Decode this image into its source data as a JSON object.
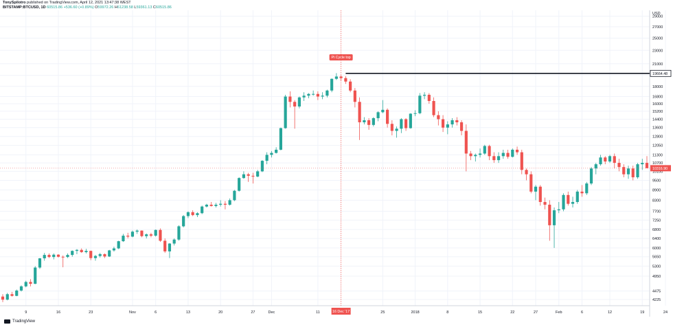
{
  "header": {
    "publisher": "TonySpilotro",
    "published_text": "published on TradingView.com, April 12, 2021 13:47:38 WEST",
    "symbol": "BITSTAMP:BTCUSD, 1D",
    "last": "60515.86",
    "change": "+536.60 (+0.89%)",
    "o_label": "O",
    "o_value": "59972.26",
    "h_label": "H",
    "h_value": "61238.58",
    "l_label": "L",
    "l_value": "59361.13",
    "c_label": "C",
    "c_value": "60515.86"
  },
  "footer": {
    "brand": "TradingView"
  },
  "colors": {
    "up": "#26a69a",
    "down": "#ef5350",
    "cycle_line": "#ef5350",
    "resistance": "#131722"
  },
  "chart_data": {
    "type": "candlestick",
    "currency_label": "USD",
    "y_ticks": [
      4225,
      4475,
      4950,
      5300,
      5650,
      6000,
      6400,
      6800,
      7250,
      7700,
      8300,
      8900,
      9500,
      10100,
      10700,
      11300,
      12050,
      12800,
      13600,
      14400,
      15200,
      16000,
      16800,
      18000,
      19400,
      21000,
      23000,
      25000,
      27000,
      29000
    ],
    "ylim": [
      4050,
      30200
    ],
    "x_ticks": [
      {
        "label": "9",
        "index": 5
      },
      {
        "label": "16",
        "index": 12
      },
      {
        "label": "23",
        "index": 19
      },
      {
        "label": "Nov",
        "index": 28
      },
      {
        "label": "6",
        "index": 33
      },
      {
        "label": "13",
        "index": 40
      },
      {
        "label": "20",
        "index": 47
      },
      {
        "label": "27",
        "index": 54
      },
      {
        "label": "Dec",
        "index": 58
      },
      {
        "label": "11",
        "index": 68
      },
      {
        "label": "25",
        "index": 82
      },
      {
        "label": "2018",
        "index": 89
      },
      {
        "label": "8",
        "index": 96
      },
      {
        "label": "15",
        "index": 103
      },
      {
        "label": "22",
        "index": 110
      },
      {
        "label": "27",
        "index": 115
      },
      {
        "label": "Feb",
        "index": 120
      },
      {
        "label": "6",
        "index": 125
      },
      {
        "label": "12",
        "index": 131
      },
      {
        "label": "19",
        "index": 138
      },
      {
        "label": "24",
        "index": 143
      }
    ],
    "cycle_top": {
      "label": "Pi Cycle top",
      "date_label": "16 Dec '17",
      "index": 73
    },
    "resistance": {
      "value": 19664.48,
      "label": "19664.48",
      "from_index": 74
    },
    "last_price": {
      "value": 10316.9,
      "label": "10316.90"
    },
    "candles": [
      [
        4310,
        4380,
        4150,
        4220
      ],
      [
        4220,
        4420,
        4200,
        4380
      ],
      [
        4380,
        4450,
        4310,
        4330
      ],
      [
        4330,
        4520,
        4320,
        4490
      ],
      [
        4490,
        4650,
        4460,
        4620
      ],
      [
        4620,
        4800,
        4590,
        4760
      ],
      [
        4760,
        4850,
        4620,
        4700
      ],
      [
        4700,
        5300,
        4690,
        5250
      ],
      [
        5250,
        5600,
        5200,
        5590
      ],
      [
        5590,
        5800,
        5500,
        5720
      ],
      [
        5720,
        5780,
        5600,
        5640
      ],
      [
        5640,
        5780,
        5550,
        5730
      ],
      [
        5730,
        5750,
        5620,
        5650
      ],
      [
        5650,
        5700,
        5260,
        5640
      ],
      [
        5640,
        5780,
        5600,
        5720
      ],
      [
        5720,
        5900,
        5650,
        5880
      ],
      [
        5880,
        5950,
        5750,
        5920
      ],
      [
        5920,
        5980,
        5800,
        5830
      ],
      [
        5830,
        5960,
        5780,
        5880
      ],
      [
        5880,
        5890,
        5520,
        5600
      ],
      [
        5600,
        5720,
        5500,
        5680
      ],
      [
        5680,
        5800,
        5620,
        5750
      ],
      [
        5750,
        5780,
        5600,
        5660
      ],
      [
        5660,
        5920,
        5640,
        5900
      ],
      [
        5900,
        6050,
        5850,
        5980
      ],
      [
        5980,
        6300,
        5950,
        6280
      ],
      [
        6280,
        6600,
        6250,
        6520
      ],
      [
        6520,
        6650,
        6400,
        6480
      ],
      [
        6480,
        6750,
        6450,
        6700
      ],
      [
        6700,
        6800,
        6600,
        6750
      ],
      [
        6750,
        6760,
        6450,
        6500
      ],
      [
        6500,
        6620,
        6400,
        6580
      ],
      [
        6580,
        6650,
        6450,
        6520
      ],
      [
        6520,
        6800,
        6480,
        6780
      ],
      [
        6780,
        6850,
        6250,
        6300
      ],
      [
        6300,
        6400,
        5800,
        5860
      ],
      [
        5860,
        6200,
        5600,
        6180
      ],
      [
        6180,
        6400,
        6100,
        6350
      ],
      [
        6350,
        7000,
        6300,
        6950
      ],
      [
        6950,
        7500,
        6900,
        7450
      ],
      [
        7450,
        7700,
        7350,
        7650
      ],
      [
        7650,
        7750,
        7450,
        7500
      ],
      [
        7500,
        7650,
        7400,
        7600
      ],
      [
        7600,
        8000,
        7550,
        7950
      ],
      [
        7950,
        8100,
        7900,
        8050
      ],
      [
        8050,
        8200,
        7950,
        7980
      ],
      [
        7980,
        8150,
        7900,
        8050
      ],
      [
        8050,
        8300,
        7950,
        8100
      ],
      [
        8100,
        8250,
        7800,
        8050
      ],
      [
        8050,
        8400,
        8000,
        8300
      ],
      [
        8300,
        8900,
        8250,
        8850
      ],
      [
        8850,
        9700,
        8800,
        9650
      ],
      [
        9650,
        10100,
        9600,
        9900
      ],
      [
        9900,
        10000,
        9400,
        9800
      ],
      [
        9800,
        10000,
        9300,
        9750
      ],
      [
        9750,
        10200,
        9700,
        10100
      ],
      [
        10100,
        10900,
        10050,
        10850
      ],
      [
        10850,
        11500,
        10600,
        11300
      ],
      [
        11300,
        11600,
        11100,
        11450
      ],
      [
        11450,
        11900,
        11400,
        11700
      ],
      [
        11700,
        13600,
        11650,
        13550
      ],
      [
        13550,
        17000,
        13500,
        16800
      ],
      [
        16800,
        17400,
        15600,
        16200
      ],
      [
        16200,
        16400,
        13500,
        15700
      ],
      [
        15700,
        16800,
        15500,
        16700
      ],
      [
        16700,
        17300,
        16300,
        16900
      ],
      [
        16900,
        17200,
        16600,
        17100
      ],
      [
        17100,
        17500,
        16900,
        17100
      ],
      [
        17100,
        17400,
        16400,
        16800
      ],
      [
        16800,
        17300,
        16500,
        16900
      ],
      [
        16900,
        17600,
        16700,
        17500
      ],
      [
        17500,
        19000,
        17300,
        18950
      ],
      [
        18950,
        19700,
        18800,
        19250
      ],
      [
        19250,
        19400,
        18700,
        19040
      ],
      [
        19040,
        19300,
        18300,
        18600
      ],
      [
        18600,
        18900,
        17300,
        17500
      ],
      [
        17500,
        17800,
        15600,
        16200
      ],
      [
        16200,
        16700,
        12500,
        14100
      ],
      [
        14100,
        14600,
        13900,
        14300
      ],
      [
        14300,
        14500,
        13400,
        13850
      ],
      [
        13850,
        14600,
        13700,
        14500
      ],
      [
        14500,
        15200,
        14200,
        15100
      ],
      [
        15100,
        16400,
        15000,
        15350
      ],
      [
        15350,
        15500,
        13600,
        13950
      ],
      [
        13950,
        14300,
        12900,
        13300
      ],
      [
        13300,
        13700,
        12700,
        13500
      ],
      [
        13500,
        14500,
        13100,
        14400
      ],
      [
        14400,
        14500,
        13300,
        13550
      ],
      [
        13550,
        15000,
        13500,
        14950
      ],
      [
        14950,
        15300,
        14700,
        15000
      ],
      [
        15000,
        17200,
        14900,
        16900
      ],
      [
        16900,
        17300,
        16500,
        17000
      ],
      [
        17000,
        17200,
        16000,
        16300
      ],
      [
        16300,
        16700,
        14600,
        14800
      ],
      [
        14800,
        15200,
        13800,
        14400
      ],
      [
        14400,
        14800,
        13200,
        13600
      ],
      [
        13600,
        14200,
        13000,
        13900
      ],
      [
        13900,
        14500,
        13600,
        14300
      ],
      [
        14300,
        14600,
        13800,
        14100
      ],
      [
        14100,
        14300,
        12900,
        13300
      ],
      [
        13300,
        13900,
        10100,
        11400
      ],
      [
        11400,
        11600,
        10900,
        11200
      ],
      [
        11200,
        11400,
        10800,
        11300
      ],
      [
        11300,
        11800,
        11100,
        11400
      ],
      [
        11400,
        12100,
        11300,
        12000
      ],
      [
        12000,
        12100,
        10900,
        11200
      ],
      [
        11200,
        11500,
        10700,
        10900
      ],
      [
        10900,
        11500,
        10700,
        11200
      ],
      [
        11200,
        11700,
        11000,
        11450
      ],
      [
        11450,
        11700,
        11000,
        11150
      ],
      [
        11150,
        11800,
        11100,
        11700
      ],
      [
        11700,
        11950,
        11300,
        11500
      ],
      [
        11500,
        11700,
        9900,
        10200
      ],
      [
        10200,
        10300,
        9500,
        9900
      ],
      [
        9900,
        10100,
        8700,
        8800
      ],
      [
        8800,
        9200,
        8300,
        9100
      ],
      [
        9100,
        9200,
        8000,
        8200
      ],
      [
        8200,
        8450,
        7800,
        8050
      ],
      [
        8050,
        8300,
        6300,
        7000
      ],
      [
        7000,
        7900,
        6000,
        7750
      ],
      [
        7750,
        8200,
        7600,
        7800
      ],
      [
        7800,
        8700,
        7700,
        8600
      ],
      [
        8600,
        8800,
        8000,
        8100
      ],
      [
        8100,
        8500,
        7900,
        8200
      ],
      [
        8200,
        8900,
        8100,
        8800
      ],
      [
        8800,
        9200,
        8500,
        8700
      ],
      [
        8700,
        9400,
        8600,
        9300
      ],
      [
        9300,
        10400,
        9200,
        10300
      ],
      [
        10300,
        10700,
        9900,
        10600
      ],
      [
        10600,
        11300,
        10500,
        11100
      ],
      [
        11100,
        11200,
        10600,
        10800
      ],
      [
        10800,
        11300,
        10700,
        11200
      ],
      [
        11200,
        11400,
        10300,
        10700
      ],
      [
        10700,
        11000,
        10100,
        10400
      ],
      [
        10400,
        10600,
        9700,
        9900
      ],
      [
        9900,
        10500,
        9600,
        10300
      ],
      [
        10300,
        10500,
        9500,
        9700
      ],
      [
        9700,
        10700,
        9600,
        10600
      ],
      [
        10600,
        11000,
        10200,
        10700
      ],
      [
        10700,
        11200,
        10500,
        10320
      ]
    ]
  }
}
